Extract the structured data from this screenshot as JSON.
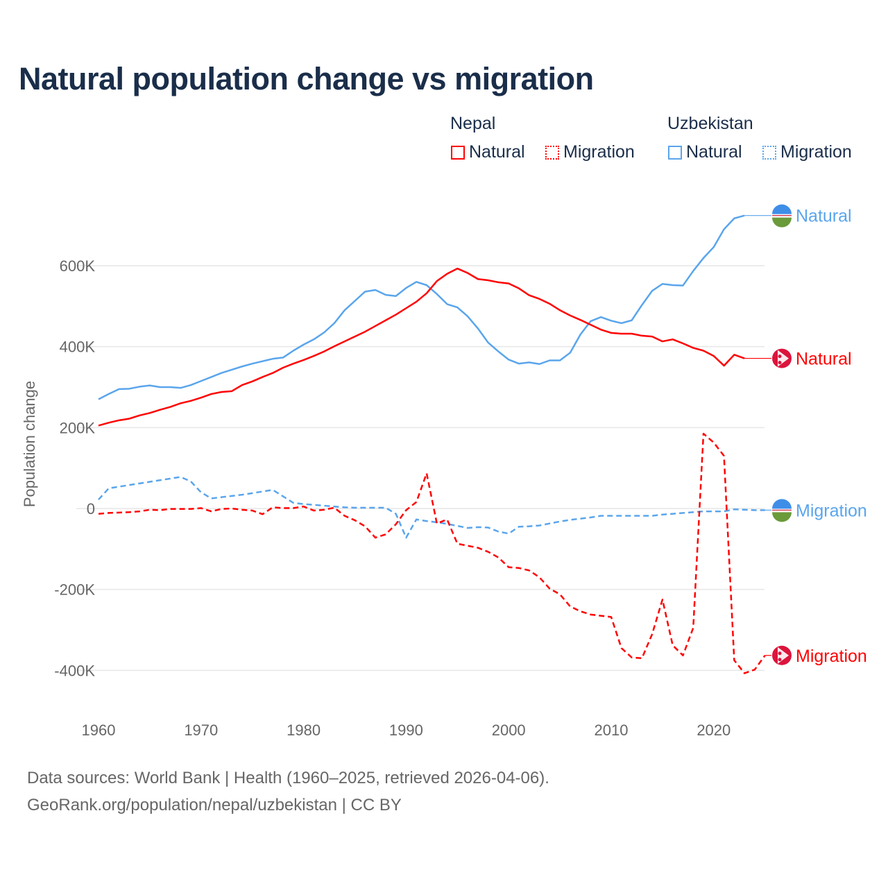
{
  "title": "Natural population change vs migration",
  "legend": {
    "groups": [
      {
        "name": "Nepal",
        "items": [
          "Natural",
          "Migration"
        ],
        "color": "#ff0000"
      },
      {
        "name": "Uzbekistan",
        "items": [
          "Natural",
          "Migration"
        ],
        "color": "#5aa5ec"
      }
    ]
  },
  "footer": [
    "Data sources: World Bank | Health (1960–2025, retrieved 2026-04-06).",
    "GeoRank.org/population/nepal/uzbekistan | CC BY"
  ],
  "chart_data": {
    "type": "line",
    "xlabel": "",
    "ylabel": "Population change",
    "xlim": [
      1960,
      2025
    ],
    "ylim": [
      -500000,
      750000
    ],
    "xticks": [
      1960,
      1970,
      1980,
      1990,
      2000,
      2010,
      2020
    ],
    "yticks": [
      {
        "v": -400000,
        "l": "-400K"
      },
      {
        "v": -200000,
        "l": "-200K"
      },
      {
        "v": 0,
        "l": "0"
      },
      {
        "v": 200000,
        "l": "200K"
      },
      {
        "v": 400000,
        "l": "400K"
      },
      {
        "v": 600000,
        "l": "600K"
      }
    ],
    "grid": true,
    "series": [
      {
        "name": "Uzbekistan Natural",
        "label": "Natural",
        "color": "#5aa5ec",
        "dashed": false,
        "start": 1960,
        "unit": 1000,
        "values": [
          270,
          283,
          295,
          296,
          301,
          304,
          300,
          300,
          298,
          305,
          315,
          325,
          335,
          343,
          351,
          358,
          364,
          370,
          373,
          390,
          405,
          418,
          435,
          458,
          490,
          513,
          536,
          540,
          528,
          525,
          545,
          560,
          552,
          530,
          505,
          497,
          475,
          445,
          410,
          388,
          368,
          358,
          361,
          357,
          366,
          366,
          385,
          430,
          463,
          473,
          464,
          458,
          465,
          503,
          538,
          555,
          552,
          551,
          587,
          619,
          646,
          690,
          717,
          724
        ]
      },
      {
        "name": "Nepal Natural",
        "label": "Natural",
        "color": "#ff0000",
        "dashed": false,
        "start": 1960,
        "unit": 1000,
        "values": [
          205,
          212,
          218,
          222,
          230,
          236,
          244,
          251,
          260,
          266,
          274,
          283,
          288,
          290,
          305,
          314,
          325,
          335,
          348,
          358,
          367,
          377,
          388,
          401,
          413,
          425,
          437,
          451,
          465,
          479,
          495,
          511,
          532,
          562,
          580,
          593,
          582,
          567,
          564,
          559,
          556,
          544,
          527,
          518,
          506,
          490,
          477,
          466,
          454,
          442,
          434,
          432,
          432,
          427,
          425,
          413,
          418,
          408,
          397,
          390,
          377,
          353,
          380,
          371
        ]
      },
      {
        "name": "Uzbekistan Migration",
        "label": "Migration",
        "color": "#5aa5ec",
        "dashed": true,
        "start": 1960,
        "unit": 1000,
        "values": [
          22,
          50,
          54,
          58,
          62,
          66,
          70,
          74,
          78,
          67,
          40,
          25,
          28,
          31,
          34,
          38,
          42,
          46,
          30,
          14,
          11,
          9,
          7,
          5,
          3,
          2,
          2,
          2,
          2,
          -13,
          -72,
          -27,
          -31,
          -34,
          -38,
          -43,
          -48,
          -46,
          -47,
          -57,
          -62,
          -45,
          -44,
          -42,
          -37,
          -32,
          -28,
          -25,
          -22,
          -18,
          -18,
          -18,
          -18,
          -18,
          -18,
          -15,
          -13,
          -11,
          -9,
          -7,
          -7,
          -7,
          -2,
          -3,
          -4,
          -4
        ]
      },
      {
        "name": "Nepal Migration",
        "label": "Migration",
        "color": "#ff0000",
        "dashed": true,
        "start": 1960,
        "unit": 1000,
        "values": [
          -13,
          -11,
          -10,
          -9,
          -7,
          -3,
          -4,
          -1,
          -1,
          -1,
          1,
          -7,
          -1,
          0,
          -3,
          -5,
          -14,
          3,
          1,
          1,
          5,
          -5,
          -3,
          2,
          -18,
          -29,
          -44,
          -72,
          -64,
          -39,
          -4,
          16,
          87,
          -37,
          -27,
          -87,
          -92,
          -97,
          -107,
          -121,
          -145,
          -147,
          -153,
          -170,
          -198,
          -212,
          -242,
          -254,
          -262,
          -265,
          -268,
          -345,
          -368,
          -370,
          -310,
          -225,
          -338,
          -363,
          -295,
          185,
          163,
          130,
          -375,
          -407,
          -398,
          -363
        ]
      }
    ]
  }
}
